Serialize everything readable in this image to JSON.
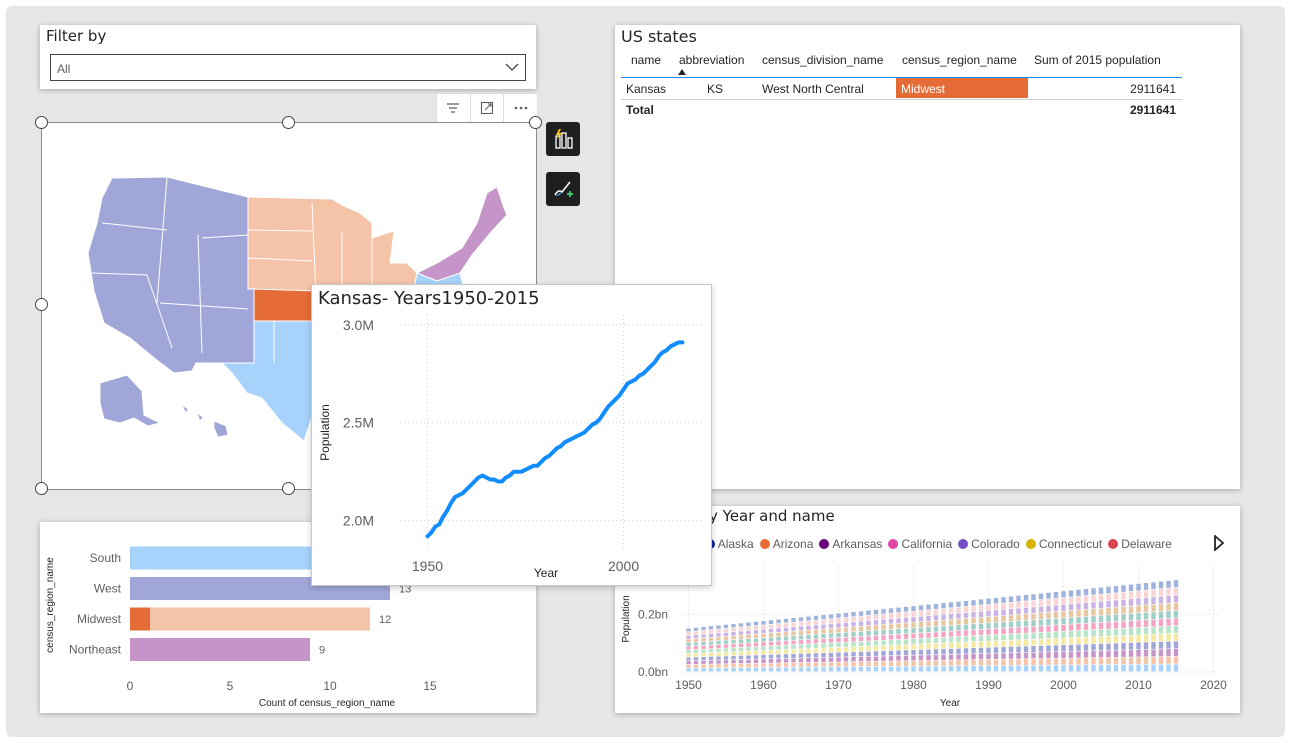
{
  "filter": {
    "title": "Filter by",
    "selected": "All"
  },
  "table": {
    "title": "US states",
    "columns": [
      "name",
      "abbreviation",
      "census_division_name",
      "census_region_name",
      "Sum of 2015 population"
    ],
    "row": {
      "name": "Kansas",
      "abbreviation": "KS",
      "division": "West North Central",
      "region": "Midwest",
      "population": "2911641"
    },
    "total": {
      "label": "Total",
      "population": "2911641"
    },
    "highlight_color": "#E66C37"
  },
  "map": {
    "region_colors": {
      "West": "#A0A6D8",
      "Midwest": "#F4C3A8",
      "Northeast": "#C594C8",
      "South": "#A6D2FC",
      "Selected": "#E66C37"
    }
  },
  "icons": {
    "filter": "filter-icon",
    "focus": "focus-mode-icon",
    "more": "more-options-icon",
    "visual": "build-visual-icon",
    "format": "format-visual-icon",
    "next": "legend-next-icon"
  },
  "tooltip_chart": {
    "title": "Kansas- Years1950-2015",
    "chart_data": {
      "type": "line",
      "title": "Kansas- Years1950-2015",
      "xlabel": "Year",
      "ylabel": "Population",
      "xlim": [
        1943,
        2020
      ],
      "ylim": [
        1.85,
        3.05
      ],
      "xticks": [
        1950,
        2000
      ],
      "yticks": [
        2.0,
        2.5,
        3.0
      ],
      "yticklabels": [
        "2.0M",
        "2.5M",
        "3.0M"
      ],
      "color": "#118DFF",
      "series": [
        {
          "x": [
            1950,
            1951,
            1952,
            1953,
            1954,
            1955,
            1956,
            1957,
            1958,
            1959,
            1960,
            1961,
            1962,
            1963,
            1964,
            1965,
            1966,
            1967,
            1968,
            1969,
            1970,
            1971,
            1972,
            1973,
            1974,
            1975,
            1976,
            1977,
            1978,
            1979,
            1980,
            1981,
            1982,
            1983,
            1984,
            1985,
            1986,
            1987,
            1988,
            1989,
            1990,
            1991,
            1992,
            1993,
            1994,
            1995,
            1996,
            1997,
            1998,
            1999,
            2000,
            2001,
            2002,
            2003,
            2004,
            2005,
            2006,
            2007,
            2008,
            2009,
            2010,
            2011,
            2012,
            2013,
            2014,
            2015
          ],
          "y": [
            1.92,
            1.94,
            1.97,
            1.98,
            2.02,
            2.05,
            2.09,
            2.12,
            2.13,
            2.14,
            2.16,
            2.18,
            2.2,
            2.22,
            2.23,
            2.22,
            2.21,
            2.21,
            2.2,
            2.2,
            2.22,
            2.23,
            2.25,
            2.25,
            2.25,
            2.26,
            2.27,
            2.28,
            2.28,
            2.3,
            2.32,
            2.33,
            2.35,
            2.37,
            2.38,
            2.4,
            2.41,
            2.42,
            2.43,
            2.44,
            2.45,
            2.47,
            2.49,
            2.5,
            2.52,
            2.55,
            2.58,
            2.6,
            2.62,
            2.64,
            2.67,
            2.7,
            2.71,
            2.72,
            2.74,
            2.75,
            2.77,
            2.79,
            2.81,
            2.84,
            2.86,
            2.87,
            2.89,
            2.9,
            2.91,
            2.91
          ]
        }
      ]
    }
  },
  "bar_chart": {
    "chart_data": {
      "type": "bar",
      "orientation": "horizontal",
      "xlabel": "Count of census_region_name",
      "ylabel": "census_region_name",
      "categories": [
        "South",
        "West",
        "Midwest",
        "Northeast"
      ],
      "values": [
        17,
        13,
        12,
        9
      ],
      "highlight": {
        "category": "Midwest",
        "value": 1
      },
      "colors": [
        "#A6D2FC",
        "#A0A6D8",
        "#F4C3A8",
        "#C594C8"
      ],
      "highlight_color": "#E66C37",
      "xlim": [
        0,
        18
      ],
      "xticks": [
        0,
        5,
        10,
        15
      ],
      "xticklabels": [
        "0",
        "5",
        "10",
        "15"
      ],
      "data_labels": [
        "17",
        "13",
        "12",
        "9"
      ]
    }
  },
  "stacked_chart": {
    "title": "y Year and name",
    "legend": [
      {
        "name": "a",
        "color": "#4A6FE3"
      },
      {
        "name": "Alaska",
        "color": "#12239E"
      },
      {
        "name": "Arizona",
        "color": "#E66C37"
      },
      {
        "name": "Arkansas",
        "color": "#6B007B"
      },
      {
        "name": "California",
        "color": "#E044A7"
      },
      {
        "name": "Colorado",
        "color": "#744EC2"
      },
      {
        "name": "Connecticut",
        "color": "#D9B300"
      },
      {
        "name": "Delaware",
        "color": "#D64550"
      }
    ],
    "chart_data": {
      "type": "bar",
      "stacked": true,
      "xlabel": "Year",
      "ylabel": "Population",
      "xlim": [
        1949,
        2021
      ],
      "ylim": [
        0,
        0.37
      ],
      "xticks": [
        1950,
        1960,
        1970,
        1980,
        1990,
        2000,
        2010,
        2020
      ],
      "yticks": [
        0.0,
        0.2
      ],
      "yticklabels": [
        "0.0bn",
        "0.2bn"
      ],
      "x_start": 1950,
      "x_end": 2015,
      "total_start": 0.152,
      "total_end": 0.321,
      "series_colors": [
        "#A6D2FC",
        "#F4C3A8",
        "#C594C8",
        "#A0A6D8",
        "#F5E8A0",
        "#B7E4C7",
        "#F4A3C0",
        "#A0CFC8",
        "#E8C6A0",
        "#C9B3E6",
        "#FAD4D4",
        "#9FB4DD"
      ]
    }
  }
}
